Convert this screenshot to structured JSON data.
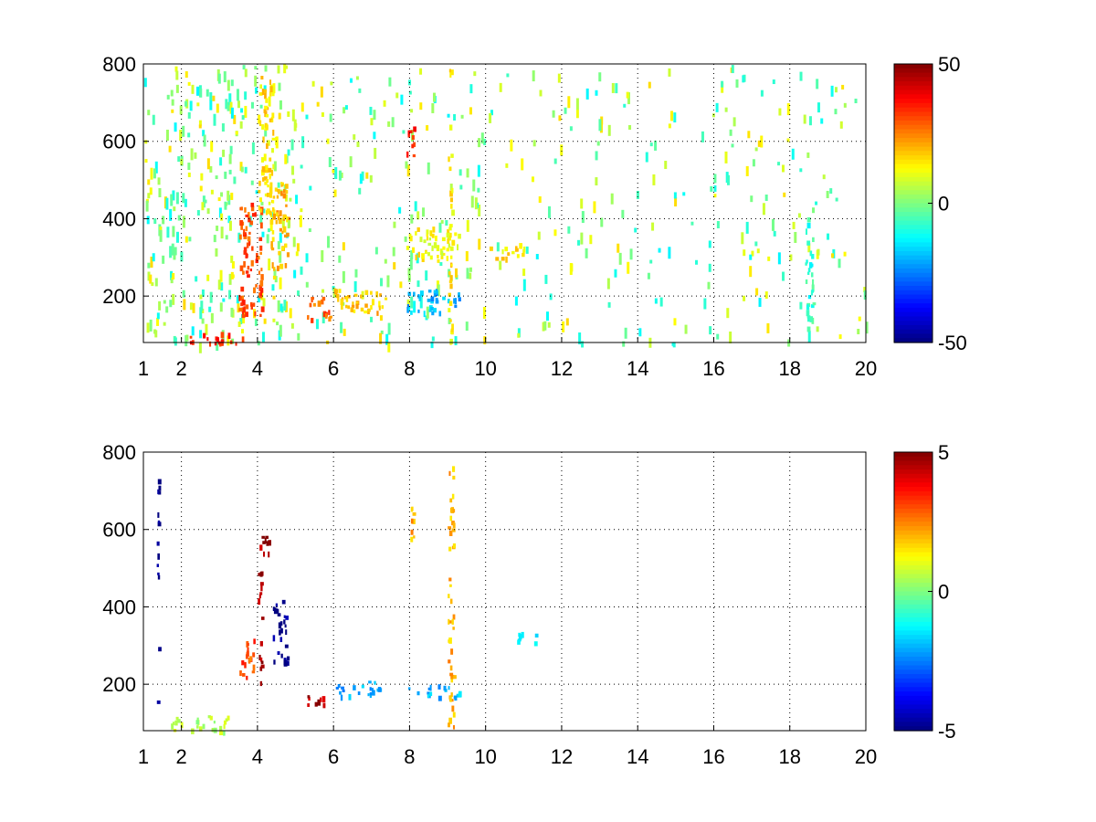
{
  "chart_data": [
    {
      "type": "heatmap",
      "title": "",
      "xlabel": "",
      "ylabel": "",
      "xlim": [
        1,
        20
      ],
      "ylim": [
        80,
        800
      ],
      "x_ticks": [
        1,
        2,
        4,
        6,
        8,
        10,
        12,
        14,
        16,
        18,
        20
      ],
      "y_ticks": [
        200,
        400,
        600,
        800
      ],
      "grid": true,
      "colormap": "jet",
      "colorbar": {
        "min": -50,
        "max": 50,
        "ticks": [
          -50,
          0,
          50
        ]
      },
      "features": [
        {
          "x": [
            2.2,
            3.6
          ],
          "y": [
            80,
            110
          ],
          "value": 35
        },
        {
          "x": [
            3.5,
            4.1
          ],
          "y": [
            150,
            450
          ],
          "value": 30
        },
        {
          "x": [
            4.0,
            4.4
          ],
          "y": [
            400,
            780
          ],
          "value": 15
        },
        {
          "x": [
            4.3,
            4.8
          ],
          "y": [
            250,
            500
          ],
          "value": 20
        },
        {
          "x": [
            5.3,
            5.9
          ],
          "y": [
            140,
            200
          ],
          "value": 28
        },
        {
          "x": [
            6.0,
            7.4
          ],
          "y": [
            160,
            220
          ],
          "value": 18
        },
        {
          "x": [
            7.9,
            8.1
          ],
          "y": [
            560,
            660
          ],
          "value": 35
        },
        {
          "x": [
            7.9,
            9.3
          ],
          "y": [
            160,
            220
          ],
          "value": -20
        },
        {
          "x": [
            7.9,
            9.3
          ],
          "y": [
            300,
            380
          ],
          "value": 12
        },
        {
          "x": [
            9.0,
            9.1
          ],
          "y": [
            80,
            800
          ],
          "value": 15
        },
        {
          "x": [
            10.1,
            11.0
          ],
          "y": [
            300,
            340
          ],
          "value": 15
        },
        {
          "x": [
            18.4,
            18.6
          ],
          "y": [
            80,
            420
          ],
          "value": -8
        }
      ]
    },
    {
      "type": "heatmap",
      "title": "",
      "xlabel": "",
      "ylabel": "",
      "xlim": [
        1,
        20
      ],
      "ylim": [
        80,
        800
      ],
      "x_ticks": [
        1,
        2,
        4,
        6,
        8,
        10,
        12,
        14,
        16,
        18,
        20
      ],
      "y_ticks": [
        200,
        400,
        600,
        800
      ],
      "grid": true,
      "colormap": "jet",
      "colorbar": {
        "min": -5,
        "max": 5,
        "ticks": [
          -5,
          0,
          5
        ]
      },
      "features": [
        {
          "x": [
            1.35,
            1.4
          ],
          "y": [
            110,
            750
          ],
          "value": -5
        },
        {
          "x": [
            1.7,
            3.2
          ],
          "y": [
            80,
            120
          ],
          "value": 0.5
        },
        {
          "x": [
            3.5,
            3.9
          ],
          "y": [
            220,
            320
          ],
          "value": 3
        },
        {
          "x": [
            4.0,
            4.1
          ],
          "y": [
            200,
            580
          ],
          "value": 4.5
        },
        {
          "x": [
            4.1,
            4.3
          ],
          "y": [
            540,
            590
          ],
          "value": 5
        },
        {
          "x": [
            4.4,
            4.8
          ],
          "y": [
            260,
            420
          ],
          "value": -5
        },
        {
          "x": [
            5.3,
            5.8
          ],
          "y": [
            150,
            180
          ],
          "value": 4.5
        },
        {
          "x": [
            6.0,
            7.2
          ],
          "y": [
            170,
            210
          ],
          "value": -2
        },
        {
          "x": [
            7.9,
            9.3
          ],
          "y": [
            170,
            200
          ],
          "value": -2
        },
        {
          "x": [
            8.0,
            8.1
          ],
          "y": [
            570,
            670
          ],
          "value": 2
        },
        {
          "x": [
            9.0,
            9.15
          ],
          "y": [
            90,
            780
          ],
          "value": 2
        },
        {
          "x": [
            10.8,
            11.3
          ],
          "y": [
            310,
            340
          ],
          "value": -1.5
        }
      ]
    }
  ]
}
